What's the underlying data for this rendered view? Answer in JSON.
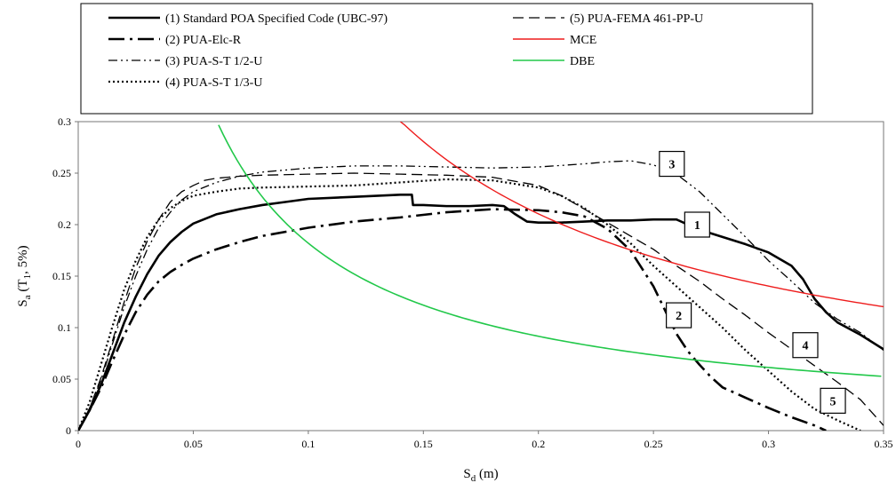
{
  "chart_data": {
    "type": "line",
    "xlabel": {
      "main": "S",
      "sub": "d",
      "rest": " (m)"
    },
    "ylabel": {
      "main": "S",
      "sub1": "a",
      "mid": " (T",
      "sub2": "1",
      "rest": ", 5%)"
    },
    "xlim": [
      0,
      0.35
    ],
    "ylim": [
      0,
      0.3
    ],
    "x_ticks": [
      0,
      0.05,
      0.1,
      0.15,
      0.2,
      0.25,
      0.3,
      0.35
    ],
    "x_tick_labels": [
      "0",
      "0.05",
      "0.1",
      "0.15",
      "0.2",
      "0.25",
      "0.3",
      "0.35"
    ],
    "y_ticks": [
      0,
      0.05,
      0.1,
      0.15,
      0.2,
      0.25,
      0.3
    ],
    "y_tick_labels": [
      "0",
      "0.05",
      "0.1",
      "0.15",
      "0.2",
      "0.25",
      "0.3"
    ],
    "grid": false,
    "legend_position": "top",
    "series": [
      {
        "name": "(1) Standard POA Specified Code (UBC-97)",
        "color": "#000000",
        "dash": "solid",
        "width": 2.6,
        "points": [
          [
            0,
            0
          ],
          [
            0.005,
            0.02
          ],
          [
            0.01,
            0.045
          ],
          [
            0.015,
            0.075
          ],
          [
            0.02,
            0.105
          ],
          [
            0.025,
            0.13
          ],
          [
            0.03,
            0.152
          ],
          [
            0.035,
            0.17
          ],
          [
            0.04,
            0.183
          ],
          [
            0.045,
            0.193
          ],
          [
            0.05,
            0.201
          ],
          [
            0.06,
            0.21
          ],
          [
            0.07,
            0.215
          ],
          [
            0.08,
            0.219
          ],
          [
            0.09,
            0.222
          ],
          [
            0.1,
            0.225
          ],
          [
            0.12,
            0.227
          ],
          [
            0.14,
            0.229
          ],
          [
            0.145,
            0.229
          ],
          [
            0.1455,
            0.219
          ],
          [
            0.15,
            0.219
          ],
          [
            0.16,
            0.218
          ],
          [
            0.17,
            0.218
          ],
          [
            0.18,
            0.219
          ],
          [
            0.185,
            0.218
          ],
          [
            0.19,
            0.21
          ],
          [
            0.195,
            0.203
          ],
          [
            0.2,
            0.202
          ],
          [
            0.21,
            0.202
          ],
          [
            0.22,
            0.203
          ],
          [
            0.23,
            0.204
          ],
          [
            0.24,
            0.204
          ],
          [
            0.25,
            0.205
          ],
          [
            0.26,
            0.205
          ],
          [
            0.27,
            0.195
          ],
          [
            0.28,
            0.188
          ],
          [
            0.29,
            0.181
          ],
          [
            0.3,
            0.173
          ],
          [
            0.31,
            0.16
          ],
          [
            0.315,
            0.147
          ],
          [
            0.32,
            0.128
          ],
          [
            0.325,
            0.115
          ],
          [
            0.33,
            0.105
          ],
          [
            0.34,
            0.093
          ],
          [
            0.35,
            0.079
          ]
        ]
      },
      {
        "name": "(2) PUA-Elc-R",
        "color": "#000000",
        "dash": "18 6 3 6",
        "width": 2.6,
        "points": [
          [
            0,
            0
          ],
          [
            0.005,
            0.02
          ],
          [
            0.01,
            0.042
          ],
          [
            0.015,
            0.068
          ],
          [
            0.02,
            0.093
          ],
          [
            0.025,
            0.115
          ],
          [
            0.03,
            0.132
          ],
          [
            0.035,
            0.145
          ],
          [
            0.04,
            0.154
          ],
          [
            0.045,
            0.161
          ],
          [
            0.05,
            0.167
          ],
          [
            0.06,
            0.176
          ],
          [
            0.07,
            0.183
          ],
          [
            0.08,
            0.189
          ],
          [
            0.1,
            0.197
          ],
          [
            0.12,
            0.203
          ],
          [
            0.14,
            0.207
          ],
          [
            0.16,
            0.212
          ],
          [
            0.18,
            0.215
          ],
          [
            0.2,
            0.214
          ],
          [
            0.21,
            0.212
          ],
          [
            0.22,
            0.208
          ],
          [
            0.23,
            0.196
          ],
          [
            0.24,
            0.175
          ],
          [
            0.25,
            0.14
          ],
          [
            0.255,
            0.117
          ],
          [
            0.26,
            0.094
          ],
          [
            0.265,
            0.077
          ],
          [
            0.27,
            0.064
          ],
          [
            0.275,
            0.052
          ],
          [
            0.28,
            0.042
          ],
          [
            0.29,
            0.032
          ],
          [
            0.3,
            0.022
          ],
          [
            0.31,
            0.013
          ],
          [
            0.32,
            0.005
          ],
          [
            0.325,
            0
          ]
        ]
      },
      {
        "name": "(3)  PUA-S-T 1/2-U",
        "color": "#000000",
        "dash": "10 4 2 4 2 4",
        "width": 1.3,
        "points": [
          [
            0,
            0
          ],
          [
            0.005,
            0.022
          ],
          [
            0.01,
            0.05
          ],
          [
            0.015,
            0.085
          ],
          [
            0.02,
            0.12
          ],
          [
            0.025,
            0.15
          ],
          [
            0.03,
            0.176
          ],
          [
            0.035,
            0.197
          ],
          [
            0.04,
            0.212
          ],
          [
            0.045,
            0.224
          ],
          [
            0.05,
            0.232
          ],
          [
            0.06,
            0.241
          ],
          [
            0.07,
            0.247
          ],
          [
            0.08,
            0.251
          ],
          [
            0.1,
            0.255
          ],
          [
            0.12,
            0.257
          ],
          [
            0.14,
            0.257
          ],
          [
            0.16,
            0.256
          ],
          [
            0.18,
            0.255
          ],
          [
            0.2,
            0.256
          ],
          [
            0.22,
            0.259
          ],
          [
            0.23,
            0.261
          ],
          [
            0.24,
            0.262
          ],
          [
            0.25,
            0.258
          ],
          [
            0.26,
            0.249
          ],
          [
            0.27,
            0.232
          ],
          [
            0.28,
            0.21
          ],
          [
            0.29,
            0.188
          ],
          [
            0.3,
            0.165
          ],
          [
            0.31,
            0.145
          ],
          [
            0.32,
            0.124
          ],
          [
            0.33,
            0.108
          ],
          [
            0.34,
            0.095
          ],
          [
            0.35,
            0.078
          ]
        ]
      },
      {
        "name": "(4)  PUA-S-T 1/3-U",
        "color": "#000000",
        "dash": "2 3",
        "width": 2.2,
        "points": [
          [
            0,
            0
          ],
          [
            0.005,
            0.028
          ],
          [
            0.01,
            0.065
          ],
          [
            0.015,
            0.102
          ],
          [
            0.02,
            0.137
          ],
          [
            0.025,
            0.165
          ],
          [
            0.03,
            0.188
          ],
          [
            0.035,
            0.205
          ],
          [
            0.04,
            0.216
          ],
          [
            0.045,
            0.223
          ],
          [
            0.05,
            0.228
          ],
          [
            0.06,
            0.232
          ],
          [
            0.07,
            0.235
          ],
          [
            0.08,
            0.236
          ],
          [
            0.1,
            0.237
          ],
          [
            0.12,
            0.238
          ],
          [
            0.14,
            0.241
          ],
          [
            0.16,
            0.244
          ],
          [
            0.18,
            0.243
          ],
          [
            0.2,
            0.236
          ],
          [
            0.21,
            0.228
          ],
          [
            0.22,
            0.216
          ],
          [
            0.23,
            0.2
          ],
          [
            0.24,
            0.182
          ],
          [
            0.25,
            0.16
          ],
          [
            0.26,
            0.14
          ],
          [
            0.27,
            0.12
          ],
          [
            0.28,
            0.1
          ],
          [
            0.29,
            0.078
          ],
          [
            0.3,
            0.058
          ],
          [
            0.31,
            0.038
          ],
          [
            0.32,
            0.021
          ],
          [
            0.33,
            0.01
          ],
          [
            0.34,
            0
          ]
        ]
      },
      {
        "name": "(5)  PUA-FEMA 461-PP-U",
        "color": "#000000",
        "dash": "12 6",
        "width": 1.3,
        "points": [
          [
            0,
            0
          ],
          [
            0.005,
            0.022
          ],
          [
            0.01,
            0.052
          ],
          [
            0.015,
            0.088
          ],
          [
            0.02,
            0.125
          ],
          [
            0.025,
            0.158
          ],
          [
            0.03,
            0.184
          ],
          [
            0.035,
            0.205
          ],
          [
            0.04,
            0.222
          ],
          [
            0.045,
            0.232
          ],
          [
            0.05,
            0.238
          ],
          [
            0.055,
            0.243
          ],
          [
            0.06,
            0.245
          ],
          [
            0.07,
            0.247
          ],
          [
            0.08,
            0.248
          ],
          [
            0.1,
            0.249
          ],
          [
            0.12,
            0.25
          ],
          [
            0.14,
            0.249
          ],
          [
            0.16,
            0.248
          ],
          [
            0.18,
            0.246
          ],
          [
            0.2,
            0.238
          ],
          [
            0.21,
            0.228
          ],
          [
            0.22,
            0.215
          ],
          [
            0.23,
            0.202
          ],
          [
            0.24,
            0.189
          ],
          [
            0.25,
            0.176
          ],
          [
            0.26,
            0.16
          ],
          [
            0.27,
            0.145
          ],
          [
            0.28,
            0.128
          ],
          [
            0.29,
            0.112
          ],
          [
            0.3,
            0.095
          ],
          [
            0.31,
            0.079
          ],
          [
            0.32,
            0.063
          ],
          [
            0.33,
            0.047
          ],
          [
            0.34,
            0.03
          ],
          [
            0.35,
            0.005
          ]
        ]
      },
      {
        "name": "MCE",
        "color": "#ee1c1c",
        "dash": "solid",
        "width": 1.4,
        "fn": "mce"
      },
      {
        "name": "DBE",
        "color": "#22c84a",
        "dash": "solid",
        "width": 1.6,
        "fn": "dbe"
      }
    ],
    "annotations": [
      {
        "text": "1",
        "x": 0.269,
        "y": 0.2
      },
      {
        "text": "2",
        "x": 0.261,
        "y": 0.112
      },
      {
        "text": "3",
        "x": 0.258,
        "y": 0.259
      },
      {
        "text": "4",
        "x": 0.316,
        "y": 0.083
      },
      {
        "text": "5",
        "x": 0.328,
        "y": 0.029
      }
    ]
  }
}
